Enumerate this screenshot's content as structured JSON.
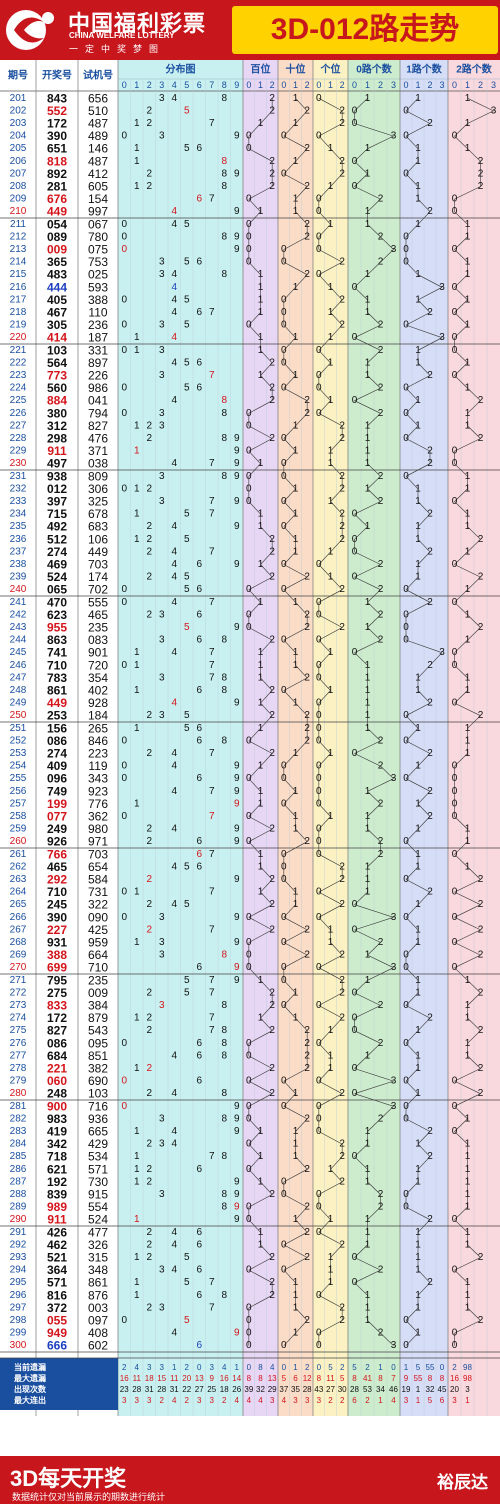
{
  "header": {
    "brand_cn": "中国福利彩票",
    "brand_en": "CHINA WELFARE LOTTERY",
    "slogan": "一定中奖梦图",
    "title": "3D-012路走势"
  },
  "footer": {
    "title": "3D每天开奖",
    "note": "数据统计仅对当前展示的期数进行统计",
    "signature": "裕辰达"
  },
  "colors": {
    "brand_red": "#c8161d",
    "yellow": "#ffd200",
    "number_black": "#111111",
    "number_red": "#d4141b",
    "number_blue": "#1d3fbf",
    "grid": "#9ab6c9"
  },
  "columns": {
    "issue": "期号",
    "winning": "开奖号",
    "test": "试机号",
    "distribution": "分布图",
    "hundreds": "百位",
    "tens": "十位",
    "units": "个位",
    "road0": "0路个数",
    "road1": "1路个数",
    "road2": "2路个数"
  },
  "stat_labels": [
    "当前遗漏",
    "最大遗漏",
    "出现次数",
    "最大连出"
  ],
  "draws": [
    {
      "issue": "201",
      "win": "843",
      "test": "656"
    },
    {
      "issue": "202",
      "win": "552",
      "test": "510"
    },
    {
      "issue": "203",
      "win": "172",
      "test": "487"
    },
    {
      "issue": "204",
      "win": "390",
      "test": "489"
    },
    {
      "issue": "205",
      "win": "651",
      "test": "146"
    },
    {
      "issue": "206",
      "win": "818",
      "test": "487"
    },
    {
      "issue": "207",
      "win": "892",
      "test": "412"
    },
    {
      "issue": "208",
      "win": "281",
      "test": "605"
    },
    {
      "issue": "209",
      "win": "676",
      "test": "154"
    },
    {
      "issue": "210",
      "win": "449",
      "test": "997"
    },
    {
      "issue": "211",
      "win": "054",
      "test": "067"
    },
    {
      "issue": "212",
      "win": "089",
      "test": "780"
    },
    {
      "issue": "213",
      "win": "009",
      "test": "075"
    },
    {
      "issue": "214",
      "win": "365",
      "test": "753"
    },
    {
      "issue": "215",
      "win": "483",
      "test": "025"
    },
    {
      "issue": "216",
      "win": "444",
      "test": "593"
    },
    {
      "issue": "217",
      "win": "405",
      "test": "388"
    },
    {
      "issue": "218",
      "win": "467",
      "test": "110"
    },
    {
      "issue": "219",
      "win": "305",
      "test": "236"
    },
    {
      "issue": "220",
      "win": "414",
      "test": "187"
    },
    {
      "issue": "221",
      "win": "103",
      "test": "331"
    },
    {
      "issue": "222",
      "win": "564",
      "test": "897"
    },
    {
      "issue": "223",
      "win": "773",
      "test": "226"
    },
    {
      "issue": "224",
      "win": "560",
      "test": "986"
    },
    {
      "issue": "225",
      "win": "884",
      "test": "041"
    },
    {
      "issue": "226",
      "win": "380",
      "test": "794"
    },
    {
      "issue": "227",
      "win": "312",
      "test": "827"
    },
    {
      "issue": "228",
      "win": "298",
      "test": "476"
    },
    {
      "issue": "229",
      "win": "911",
      "test": "371"
    },
    {
      "issue": "230",
      "win": "497",
      "test": "038"
    },
    {
      "issue": "231",
      "win": "938",
      "test": "809"
    },
    {
      "issue": "232",
      "win": "012",
      "test": "306"
    },
    {
      "issue": "233",
      "win": "397",
      "test": "325"
    },
    {
      "issue": "234",
      "win": "715",
      "test": "678"
    },
    {
      "issue": "235",
      "win": "492",
      "test": "683"
    },
    {
      "issue": "236",
      "win": "512",
      "test": "106"
    },
    {
      "issue": "237",
      "win": "274",
      "test": "449"
    },
    {
      "issue": "238",
      "win": "469",
      "test": "703"
    },
    {
      "issue": "239",
      "win": "524",
      "test": "174"
    },
    {
      "issue": "240",
      "win": "065",
      "test": "702"
    },
    {
      "issue": "241",
      "win": "470",
      "test": "555"
    },
    {
      "issue": "242",
      "win": "623",
      "test": "465"
    },
    {
      "issue": "243",
      "win": "955",
      "test": "235"
    },
    {
      "issue": "244",
      "win": "863",
      "test": "083"
    },
    {
      "issue": "245",
      "win": "741",
      "test": "901"
    },
    {
      "issue": "246",
      "win": "710",
      "test": "720"
    },
    {
      "issue": "247",
      "win": "783",
      "test": "354"
    },
    {
      "issue": "248",
      "win": "861",
      "test": "402"
    },
    {
      "issue": "249",
      "win": "449",
      "test": "928"
    },
    {
      "issue": "250",
      "win": "253",
      "test": "184"
    },
    {
      "issue": "251",
      "win": "156",
      "test": "265"
    },
    {
      "issue": "252",
      "win": "086",
      "test": "846"
    },
    {
      "issue": "253",
      "win": "274",
      "test": "223"
    },
    {
      "issue": "254",
      "win": "409",
      "test": "119"
    },
    {
      "issue": "255",
      "win": "096",
      "test": "343"
    },
    {
      "issue": "256",
      "win": "749",
      "test": "923"
    },
    {
      "issue": "257",
      "win": "199",
      "test": "776"
    },
    {
      "issue": "258",
      "win": "077",
      "test": "362"
    },
    {
      "issue": "259",
      "win": "249",
      "test": "980"
    },
    {
      "issue": "260",
      "win": "926",
      "test": "971"
    },
    {
      "issue": "261",
      "win": "766",
      "test": "703"
    },
    {
      "issue": "262",
      "win": "465",
      "test": "654"
    },
    {
      "issue": "263",
      "win": "292",
      "test": "584"
    },
    {
      "issue": "264",
      "win": "710",
      "test": "731"
    },
    {
      "issue": "265",
      "win": "245",
      "test": "322"
    },
    {
      "issue": "266",
      "win": "390",
      "test": "090"
    },
    {
      "issue": "267",
      "win": "227",
      "test": "425"
    },
    {
      "issue": "268",
      "win": "931",
      "test": "959"
    },
    {
      "issue": "269",
      "win": "388",
      "test": "664"
    },
    {
      "issue": "270",
      "win": "699",
      "test": "710"
    },
    {
      "issue": "271",
      "win": "795",
      "test": "235"
    },
    {
      "issue": "272",
      "win": "275",
      "test": "009"
    },
    {
      "issue": "273",
      "win": "833",
      "test": "384"
    },
    {
      "issue": "274",
      "win": "172",
      "test": "879"
    },
    {
      "issue": "275",
      "win": "827",
      "test": "543"
    },
    {
      "issue": "276",
      "win": "086",
      "test": "095"
    },
    {
      "issue": "277",
      "win": "684",
      "test": "851"
    },
    {
      "issue": "278",
      "win": "221",
      "test": "382"
    },
    {
      "issue": "279",
      "win": "060",
      "test": "690"
    },
    {
      "issue": "280",
      "win": "248",
      "test": "103"
    },
    {
      "issue": "281",
      "win": "900",
      "test": "716"
    },
    {
      "issue": "282",
      "win": "983",
      "test": "936"
    },
    {
      "issue": "283",
      "win": "419",
      "test": "665"
    },
    {
      "issue": "284",
      "win": "342",
      "test": "429"
    },
    {
      "issue": "285",
      "win": "718",
      "test": "534"
    },
    {
      "issue": "286",
      "win": "621",
      "test": "571"
    },
    {
      "issue": "287",
      "win": "192",
      "test": "730"
    },
    {
      "issue": "288",
      "win": "839",
      "test": "915"
    },
    {
      "issue": "289",
      "win": "989",
      "test": "554"
    },
    {
      "issue": "290",
      "win": "911",
      "test": "524"
    },
    {
      "issue": "291",
      "win": "426",
      "test": "477"
    },
    {
      "issue": "292",
      "win": "462",
      "test": "326"
    },
    {
      "issue": "293",
      "win": "521",
      "test": "315"
    },
    {
      "issue": "294",
      "win": "364",
      "test": "348"
    },
    {
      "issue": "295",
      "win": "571",
      "test": "861"
    },
    {
      "issue": "296",
      "win": "816",
      "test": "876"
    },
    {
      "issue": "297",
      "win": "372",
      "test": "003"
    },
    {
      "issue": "298",
      "win": "055",
      "test": "097"
    },
    {
      "issue": "299",
      "win": "949",
      "test": "408"
    },
    {
      "issue": "300",
      "win": "666",
      "test": "602"
    }
  ],
  "stats": {
    "current_miss": [
      "2",
      "4",
      "3",
      "3",
      "1",
      "2",
      "0",
      "3",
      "4",
      "1",
      "0",
      "8",
      "4",
      "0",
      "1",
      "2",
      "0",
      "5",
      "2",
      "5",
      "2",
      "1",
      "0",
      "1",
      "5",
      "55",
      "0",
      "2",
      "98"
    ],
    "max_miss": [
      "16",
      "11",
      "18",
      "15",
      "11",
      "20",
      "13",
      "9",
      "16",
      "14",
      "8",
      "8",
      "13",
      "5",
      "6",
      "12",
      "8",
      "11",
      "5",
      "8",
      "41",
      "8",
      "7",
      "9",
      "55",
      "8",
      "8",
      "16",
      "98"
    ],
    "count": [
      "23",
      "28",
      "31",
      "28",
      "31",
      "22",
      "27",
      "25",
      "18",
      "26",
      "39",
      "32",
      "29",
      "37",
      "35",
      "28",
      "43",
      "27",
      "30",
      "28",
      "53",
      "34",
      "46",
      "19",
      "1",
      "32",
      "45",
      "20",
      "3"
    ],
    "max_consec": [
      "3",
      "3",
      "3",
      "2",
      "4",
      "2",
      "3",
      "3",
      "2",
      "4",
      "4",
      "4",
      "3",
      "4",
      "3",
      "3",
      "3",
      "2",
      "2",
      "6",
      "2",
      "1",
      "4",
      "3",
      "1",
      "5",
      "6",
      "3",
      "1"
    ]
  }
}
